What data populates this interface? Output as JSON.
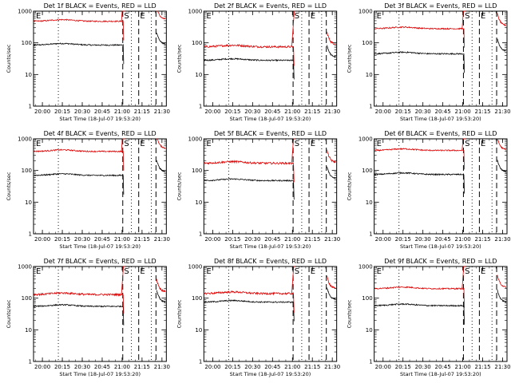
{
  "figure": {
    "background": "#ffffff",
    "colors": {
      "events": "#000000",
      "lld": "#dd0000",
      "axes": "#000000"
    }
  },
  "chart_data": [
    {
      "type": "line",
      "title": "Det 1f BLACK = Events, RED = LLD",
      "xlabel": "Start Time (18-Jul-07 19:53:20)",
      "ylabel": "Counts/sec",
      "x_ticks": [
        "20:00",
        "20:15",
        "20:30",
        "20:45",
        "21:00",
        "21:15",
        "21:30"
      ],
      "y_ticks": [
        "1",
        "10",
        "100",
        "1000"
      ],
      "ylim": [
        1,
        1000
      ],
      "y_scale": "log",
      "markers": [
        "E",
        "S",
        "E"
      ],
      "grid": false,
      "series": [
        {
          "name": "BLACK = Events",
          "pre_level": 85,
          "post_level": 90
        },
        {
          "name": "RED = LLD",
          "pre_level": 480,
          "post_level": 550
        }
      ]
    },
    {
      "type": "line",
      "title": "Det 2f BLACK = Events, RED = LLD",
      "xlabel": "Start Time (18-Jul-07 19:53:20)",
      "ylabel": "Counts/sec",
      "x_ticks": [
        "20:00",
        "20:15",
        "20:30",
        "20:45",
        "21:00",
        "21:15",
        "21:30"
      ],
      "y_ticks": [
        "1",
        "10",
        "100",
        "1000"
      ],
      "ylim": [
        1,
        1000
      ],
      "y_scale": "log",
      "markers": [
        "E",
        "S",
        "E"
      ],
      "grid": false,
      "series": [
        {
          "name": "BLACK = Events",
          "pre_level": 28,
          "post_level": 35
        },
        {
          "name": "RED = LLD",
          "pre_level": 75,
          "post_level": 90
        }
      ]
    },
    {
      "type": "line",
      "title": "Det 3f BLACK = Events, RED = LLD",
      "xlabel": "Start Time (18-Jul-07 19:53:20)",
      "ylabel": "Counts/sec",
      "x_ticks": [
        "20:00",
        "20:15",
        "20:30",
        "20:45",
        "21:00",
        "21:15",
        "21:30"
      ],
      "y_ticks": [
        "1",
        "10",
        "100",
        "1000"
      ],
      "ylim": [
        1,
        1000
      ],
      "y_scale": "log",
      "markers": [
        "E",
        "S",
        "E"
      ],
      "grid": false,
      "series": [
        {
          "name": "BLACK = Events",
          "pre_level": 45,
          "post_level": 55
        },
        {
          "name": "RED = LLD",
          "pre_level": 280,
          "post_level": 350
        }
      ]
    },
    {
      "type": "line",
      "title": "Det 4f BLACK = Events, RED = LLD",
      "xlabel": "Start Time (18-Jul-07 19:53:20)",
      "ylabel": "Counts/sec",
      "x_ticks": [
        "20:00",
        "20:15",
        "20:30",
        "20:45",
        "21:00",
        "21:15",
        "21:30"
      ],
      "y_ticks": [
        "1",
        "10",
        "100",
        "1000"
      ],
      "ylim": [
        1,
        1000
      ],
      "y_scale": "log",
      "markers": [
        "E",
        "S",
        "E"
      ],
      "grid": false,
      "series": [
        {
          "name": "BLACK = Events",
          "pre_level": 70,
          "post_level": 90
        },
        {
          "name": "RED = LLD",
          "pre_level": 400,
          "post_level": 500
        }
      ]
    },
    {
      "type": "line",
      "title": "Det 5f BLACK = Events, RED = LLD",
      "xlabel": "Start Time (18-Jul-07 19:53:20)",
      "ylabel": "Counts/sec",
      "x_ticks": [
        "20:00",
        "20:15",
        "20:30",
        "20:45",
        "21:00",
        "21:15",
        "21:30"
      ],
      "y_ticks": [
        "1",
        "10",
        "100",
        "1000"
      ],
      "ylim": [
        1,
        1000
      ],
      "y_scale": "log",
      "markers": [
        "E",
        "S",
        "E"
      ],
      "grid": false,
      "series": [
        {
          "name": "BLACK = Events",
          "pre_level": 48,
          "post_level": 55
        },
        {
          "name": "RED = LLD",
          "pre_level": 170,
          "post_level": 180
        }
      ]
    },
    {
      "type": "line",
      "title": "Det 6f BLACK = Events, RED = LLD",
      "xlabel": "Start Time (18-Jul-07 19:53:20)",
      "ylabel": "Counts/sec",
      "x_ticks": [
        "20:00",
        "20:15",
        "20:30",
        "20:45",
        "21:00",
        "21:15",
        "21:30"
      ],
      "y_ticks": [
        "1",
        "10",
        "100",
        "1000"
      ],
      "ylim": [
        1,
        1000
      ],
      "y_scale": "log",
      "markers": [
        "E",
        "S",
        "E"
      ],
      "grid": false,
      "series": [
        {
          "name": "BLACK = Events",
          "pre_level": 75,
          "post_level": 90
        },
        {
          "name": "RED = LLD",
          "pre_level": 430,
          "post_level": 450
        }
      ]
    },
    {
      "type": "line",
      "title": "Det 7f BLACK = Events, RED = LLD",
      "xlabel": "Start Time (18-Jul-07 19:53:20)",
      "ylabel": "Counts/sec",
      "x_ticks": [
        "20:00",
        "20:15",
        "20:30",
        "20:45",
        "21:00",
        "21:15",
        "21:30"
      ],
      "y_ticks": [
        "1",
        "10",
        "100",
        "1000"
      ],
      "ylim": [
        1,
        1000
      ],
      "y_scale": "log",
      "markers": [
        "E",
        "S",
        "E"
      ],
      "grid": false,
      "series": [
        {
          "name": "BLACK = Events",
          "pre_level": 55,
          "post_level": 75
        },
        {
          "name": "RED = LLD",
          "pre_level": 130,
          "post_level": 160
        }
      ]
    },
    {
      "type": "line",
      "title": "Det 8f BLACK = Events, RED = LLD",
      "xlabel": "Start Time (18-Jul-07 19:53:20)",
      "ylabel": "Counts/sec",
      "x_ticks": [
        "20:00",
        "20:15",
        "20:30",
        "20:45",
        "21:00",
        "21:15",
        "21:30"
      ],
      "y_ticks": [
        "1",
        "10",
        "100",
        "1000"
      ],
      "ylim": [
        1,
        1000
      ],
      "y_scale": "log",
      "markers": [
        "E",
        "S",
        "E"
      ],
      "grid": false,
      "series": [
        {
          "name": "BLACK = Events",
          "pre_level": 75,
          "post_level": 90
        },
        {
          "name": "RED = LLD",
          "pre_level": 140,
          "post_level": 200
        }
      ]
    },
    {
      "type": "line",
      "title": "Det 9f BLACK = Events, RED = LLD",
      "xlabel": "Start Time (18-Jul-07 19:53:20)",
      "ylabel": "Counts/sec",
      "x_ticks": [
        "20:00",
        "20:15",
        "20:30",
        "20:45",
        "21:00",
        "21:15",
        "21:30"
      ],
      "y_ticks": [
        "1",
        "10",
        "100",
        "1000"
      ],
      "ylim": [
        1,
        1000
      ],
      "y_scale": "log",
      "markers": [
        "E",
        "S",
        "E"
      ],
      "grid": false,
      "series": [
        {
          "name": "BLACK = Events",
          "pre_level": 58,
          "post_level": 75
        },
        {
          "name": "RED = LLD",
          "pre_level": 200,
          "post_level": 220
        }
      ]
    }
  ]
}
